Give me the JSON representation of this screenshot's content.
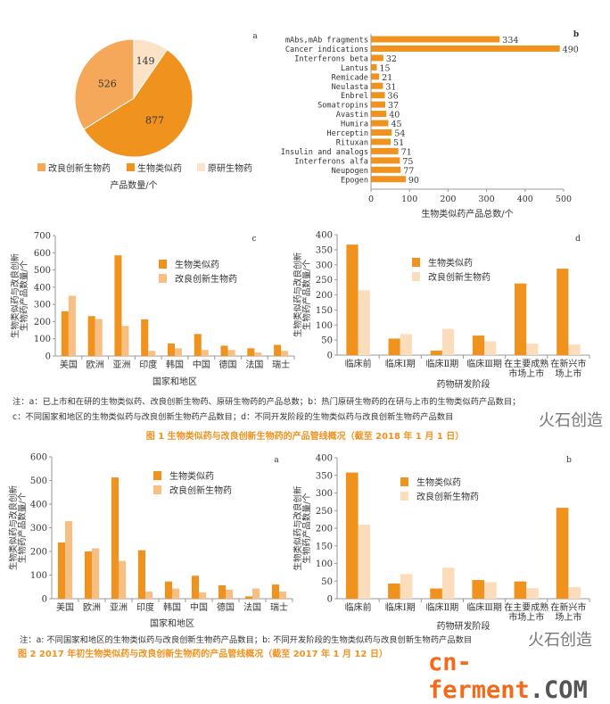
{
  "colors": {
    "biosimilar": "#F0921E",
    "improved_c": "#F8BE82",
    "improved_d": "#FCDDBB",
    "pie_improved": "#F5A85A",
    "pie_originator": "#FCE3C8"
  },
  "chart_data": [
    {
      "id": "fig1a",
      "panel": "a",
      "type": "pie",
      "slices": [
        {
          "label": "原研生物药",
          "value": 149
        },
        {
          "label": "生物类似药",
          "value": 877
        },
        {
          "label": "改良创新生物药",
          "value": 526
        }
      ],
      "legend": [
        "改良创新生物药",
        "生物类似药",
        "原研生物药"
      ],
      "xlabel": "产品数量/个"
    },
    {
      "id": "fig1b",
      "panel": "b",
      "type": "bar",
      "orientation": "horizontal",
      "categories": [
        "mAbs,mAb fragments",
        "Cancer indications",
        "Interferons beta",
        "Lantus",
        "Remicade",
        "Neulasta",
        "Enbrel",
        "Somatropins",
        "Avastin",
        "Humira",
        "Herceptin",
        "Rituxan",
        "Insulin and analogs",
        "Interferons alfa",
        "Neupogen",
        "Epogen"
      ],
      "values": [
        334,
        490,
        32,
        15,
        21,
        31,
        36,
        37,
        40,
        45,
        54,
        51,
        71,
        75,
        77,
        90
      ],
      "xlabel": "生物类似药产品总数/个",
      "xlim": [
        0,
        500
      ],
      "xticks": [
        0,
        100,
        200,
        300,
        400,
        500
      ]
    },
    {
      "id": "fig1c",
      "panel": "c",
      "type": "bar",
      "categories": [
        "美国",
        "欧洲",
        "亚洲",
        "印度",
        "韩国",
        "中国",
        "德国",
        "法国",
        "瑞士"
      ],
      "series": [
        {
          "name": "生物类似药",
          "values": [
            260,
            232,
            585,
            213,
            73,
            128,
            60,
            45,
            65
          ]
        },
        {
          "name": "改良创新生物药",
          "values": [
            350,
            215,
            175,
            30,
            45,
            35,
            35,
            20,
            30
          ]
        }
      ],
      "xlabel": "国家和地区",
      "ylabel": [
        "生物类似药与改良创新",
        "生物药产品数量/个"
      ],
      "ylim": [
        0,
        700
      ],
      "yticks": [
        0,
        100,
        200,
        300,
        400,
        500,
        600,
        700
      ],
      "legend": "top-center"
    },
    {
      "id": "fig1d",
      "panel": "d",
      "type": "bar",
      "categories": [
        [
          "临床前"
        ],
        [
          "临床Ⅰ期"
        ],
        [
          "临床Ⅱ期"
        ],
        [
          "临床Ⅲ期"
        ],
        [
          "在主要成熟",
          "市场上市"
        ],
        [
          "在新兴市",
          "场上市"
        ]
      ],
      "series": [
        {
          "name": "生物类似药",
          "values": [
            367,
            55,
            15,
            65,
            238,
            287
          ]
        },
        {
          "name": "改良创新生物药",
          "values": [
            215,
            70,
            87,
            46,
            38,
            35
          ]
        }
      ],
      "xlabel": "药物研发阶段",
      "ylabel": [
        "生物类似药与改良创新",
        "生物药产品数量/个"
      ],
      "ylim": [
        0,
        400
      ],
      "yticks": [
        0,
        50,
        100,
        150,
        200,
        250,
        300,
        350,
        400
      ],
      "legend": "top-center"
    },
    {
      "id": "fig2a",
      "panel": "a",
      "type": "bar",
      "categories": [
        "美国",
        "欧洲",
        "亚洲",
        "印度",
        "韩国",
        "中国",
        "德国",
        "法国",
        "瑞士"
      ],
      "series": [
        {
          "name": "生物类似药",
          "values": [
            238,
            200,
            513,
            205,
            73,
            97,
            57,
            10,
            60
          ]
        },
        {
          "name": "改良创新生物药",
          "values": [
            328,
            213,
            160,
            30,
            43,
            27,
            38,
            43,
            30
          ]
        }
      ],
      "xlabel": "国家和地区",
      "ylabel": [
        "生物类似药与改良创新",
        "生物药产品数量/个"
      ],
      "ylim": [
        0,
        600
      ],
      "yticks": [
        0,
        100,
        200,
        300,
        400,
        500,
        600
      ],
      "legend": "top-center"
    },
    {
      "id": "fig2b",
      "panel": "b",
      "type": "bar",
      "categories": [
        [
          "临床前"
        ],
        [
          "临床Ⅰ期"
        ],
        [
          "临床Ⅱ期"
        ],
        [
          "临床Ⅲ期"
        ],
        [
          "在主要成熟",
          "市场上市"
        ],
        [
          "在新兴市",
          "场上市"
        ]
      ],
      "series": [
        {
          "name": "生物类似药",
          "values": [
            358,
            43,
            29,
            53,
            49,
            258
          ]
        },
        {
          "name": "改良创新生物药",
          "values": [
            210,
            70,
            88,
            47,
            30,
            33
          ]
        }
      ],
      "xlabel": "药物研发阶段",
      "ylabel": [
        "生物类似药与改良创新",
        "生物药产品数量/个"
      ],
      "ylim": [
        0,
        400
      ],
      "yticks": [
        0,
        50,
        100,
        150,
        200,
        250,
        300,
        350,
        400
      ],
      "legend": "top-center"
    }
  ],
  "fig1": {
    "note1": "注：a：已上市和在研的生物类似药、改良创新生物药、原研生物药的产品总数；b：热门原研生物药的在研与上市的生物类似药产品数目；",
    "note2": "c：不同国家和地区的生物类似药与改良创新生物药产品数目；d：不同开发阶段的生物类似药与改良创新生物药产品数目",
    "title": "图 1  生物类似药与改良创新生物药的产品管线概况（截至 2018 年 1 月 1 日）"
  },
  "fig2": {
    "note": "注：a: 不同国家和地区的生物类似药与改良创新生物药产品数目；b: 不同开发阶段的生物类似药与改良创新生物药产品数目",
    "title": "图 2   2017 年初生物类似药与改良创新生物药的产品管线概况（截至 2017 年 1 月 12 日）"
  },
  "watermark": {
    "brand": "火石创造",
    "site_main": "cn-ferment",
    "site_tld": ".COM"
  }
}
